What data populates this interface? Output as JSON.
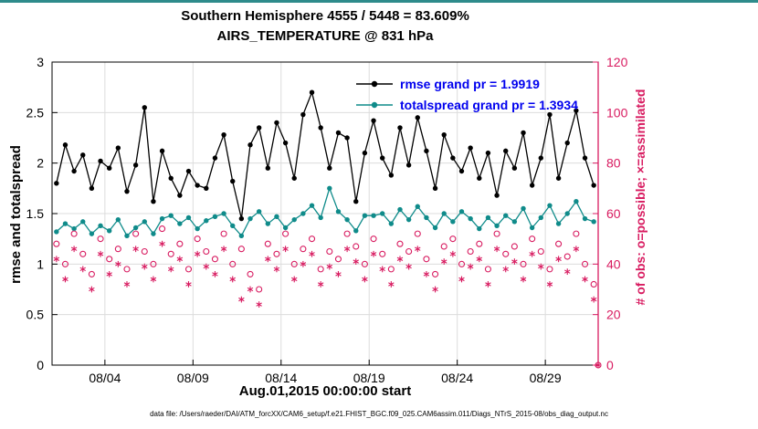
{
  "chart_data": {
    "type": "line+scatter",
    "title": "Southern Hemisphere 4555 / 5448 = 83.609%",
    "subtitle": "AIRS_TEMPERATURE @ 831 hPa",
    "ylabel_left": "rmse and totalspread",
    "ylabel_right": "# of obs: o=possible; ×=assimilated",
    "xlabel": "Aug.01,2015 00:00:00 start",
    "footnote": "data file: /Users/raeder/DAI/ATM_forcXX/CAM6_setup/f.e21.FHIST_BGC.f09_025.CAM6assim.011/Diags_NTrS_2015-08/obs_diag_output.nc",
    "stats": {
      "grand_rmse": "1.9919",
      "grand_totalspread": "1.3934",
      "possible_obs": 5448,
      "assimilated_obs": 4555,
      "assimilated_pct": "83.609%"
    },
    "colors": {
      "rmse": "#000000",
      "totalspread": "#0f8b8a",
      "obs": "#d81b60",
      "legend_text": "#0000ee",
      "grid": "#dcdcdc",
      "axis": "#000000",
      "top_border": "#2e8b8b"
    },
    "axes": {
      "xlim": [
        0,
        31
      ],
      "ylim_left": [
        0,
        3
      ],
      "ylim_right": [
        0,
        120
      ],
      "xticks": [
        {
          "day": 3,
          "label": "08/04"
        },
        {
          "day": 8,
          "label": "08/09"
        },
        {
          "day": 13,
          "label": "08/14"
        },
        {
          "day": 18,
          "label": "08/19"
        },
        {
          "day": 23,
          "label": "08/24"
        },
        {
          "day": 28,
          "label": "08/29"
        }
      ],
      "yticks_left": [
        0,
        0.5,
        1,
        1.5,
        2,
        2.5,
        3
      ],
      "yticks_right": [
        0,
        20,
        40,
        60,
        80,
        100,
        120
      ],
      "grid": true
    },
    "x": [
      0.25,
      0.75,
      1.25,
      1.75,
      2.25,
      2.75,
      3.25,
      3.75,
      4.25,
      4.75,
      5.25,
      5.75,
      6.25,
      6.75,
      7.25,
      7.75,
      8.25,
      8.75,
      9.25,
      9.75,
      10.25,
      10.75,
      11.25,
      11.75,
      12.25,
      12.75,
      13.25,
      13.75,
      14.25,
      14.75,
      15.25,
      15.75,
      16.25,
      16.75,
      17.25,
      17.75,
      18.25,
      18.75,
      19.25,
      19.75,
      20.25,
      20.75,
      21.25,
      21.75,
      22.25,
      22.75,
      23.25,
      23.75,
      24.25,
      24.75,
      25.25,
      25.75,
      26.25,
      26.75,
      27.25,
      27.75,
      28.25,
      28.75,
      29.25,
      29.75,
      30.25,
      30.75
    ],
    "series": [
      {
        "name": "rmse",
        "legend": "rmse grand pr = 1.9919",
        "color": "#000000",
        "marker": "filled-circle",
        "values": [
          1.8,
          2.18,
          1.92,
          2.08,
          1.75,
          2.02,
          1.95,
          2.15,
          1.72,
          1.98,
          2.55,
          1.62,
          2.12,
          1.85,
          1.68,
          1.92,
          1.78,
          1.75,
          2.05,
          2.28,
          1.82,
          1.45,
          2.18,
          2.35,
          1.95,
          2.4,
          2.2,
          1.85,
          2.48,
          2.7,
          2.35,
          1.95,
          2.3,
          2.25,
          1.62,
          2.1,
          2.42,
          2.05,
          1.88,
          2.35,
          1.98,
          2.45,
          2.12,
          1.75,
          2.28,
          2.05,
          1.92,
          2.15,
          1.85,
          2.1,
          1.68,
          2.12,
          1.95,
          2.3,
          1.78,
          2.05,
          2.48,
          1.85,
          2.2,
          2.52,
          2.05,
          1.78
        ]
      },
      {
        "name": "totalspread",
        "legend": "totalspread grand pr = 1.3934",
        "color": "#0f8b8a",
        "marker": "filled-circle",
        "values": [
          1.32,
          1.4,
          1.35,
          1.42,
          1.3,
          1.38,
          1.33,
          1.44,
          1.28,
          1.36,
          1.42,
          1.3,
          1.45,
          1.48,
          1.4,
          1.46,
          1.35,
          1.43,
          1.47,
          1.5,
          1.38,
          1.28,
          1.45,
          1.52,
          1.4,
          1.47,
          1.36,
          1.44,
          1.5,
          1.58,
          1.46,
          1.75,
          1.52,
          1.44,
          1.33,
          1.48,
          1.48,
          1.5,
          1.4,
          1.54,
          1.44,
          1.57,
          1.46,
          1.36,
          1.5,
          1.42,
          1.52,
          1.45,
          1.35,
          1.46,
          1.38,
          1.48,
          1.42,
          1.55,
          1.36,
          1.46,
          1.58,
          1.4,
          1.5,
          1.62,
          1.45,
          1.42
        ]
      }
    ],
    "x_obs": [
      0.25,
      0.75,
      1.25,
      1.75,
      2.25,
      2.75,
      3.25,
      3.75,
      4.25,
      4.75,
      5.25,
      5.75,
      6.25,
      6.75,
      7.25,
      7.75,
      8.25,
      8.75,
      9.25,
      9.75,
      10.25,
      10.75,
      11.25,
      11.75,
      12.25,
      12.75,
      13.25,
      13.75,
      14.25,
      14.75,
      15.25,
      15.75,
      16.25,
      16.75,
      17.25,
      17.75,
      18.25,
      18.75,
      19.25,
      19.75,
      20.25,
      20.75,
      21.25,
      21.75,
      22.25,
      22.75,
      23.25,
      23.75,
      24.25,
      24.75,
      25.25,
      25.75,
      26.25,
      26.75,
      27.25,
      27.75,
      28.25,
      28.75,
      29.25,
      29.75,
      30.25,
      30.75,
      31.0
    ],
    "obs_counts": {
      "color": "#d81b60",
      "axis": "right",
      "possible": {
        "marker": "o",
        "values": [
          48,
          40,
          52,
          44,
          36,
          50,
          42,
          46,
          38,
          52,
          45,
          40,
          54,
          44,
          48,
          38,
          50,
          45,
          42,
          52,
          40,
          46,
          36,
          30,
          48,
          44,
          52,
          40,
          46,
          50,
          38,
          45,
          42,
          52,
          47,
          40,
          50,
          44,
          38,
          48,
          45,
          52,
          42,
          36,
          47,
          50,
          40,
          45,
          48,
          38,
          52,
          44,
          47,
          40,
          50,
          45,
          38,
          48,
          43,
          52,
          40,
          32,
          0
        ]
      },
      "assimilated": {
        "marker": "*",
        "values": [
          42,
          34,
          46,
          38,
          30,
          44,
          36,
          40,
          32,
          46,
          39,
          34,
          48,
          38,
          42,
          32,
          44,
          39,
          36,
          46,
          34,
          26,
          30,
          24,
          42,
          38,
          46,
          34,
          40,
          44,
          32,
          39,
          36,
          46,
          41,
          34,
          44,
          38,
          32,
          42,
          39,
          46,
          36,
          30,
          41,
          44,
          34,
          39,
          42,
          32,
          46,
          38,
          41,
          34,
          44,
          39,
          32,
          42,
          37,
          46,
          34,
          26,
          0
        ]
      }
    }
  }
}
